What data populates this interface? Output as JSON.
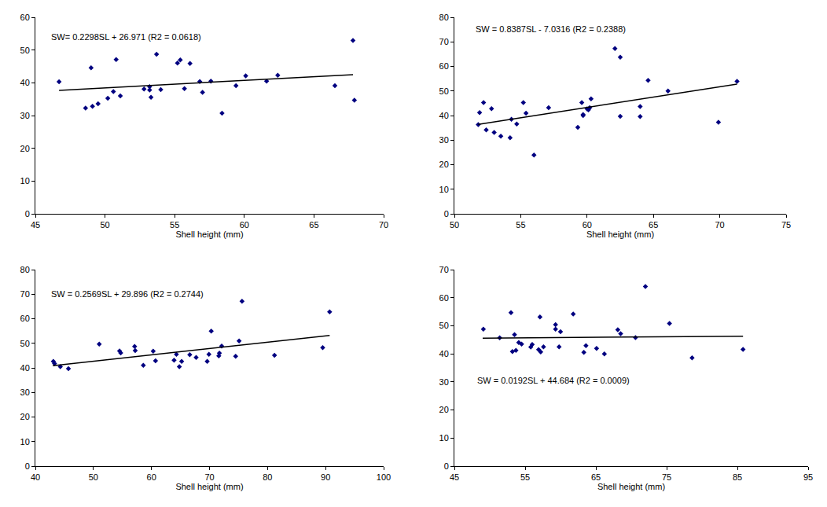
{
  "chart_data": [
    {
      "type": "scatter",
      "annotation": "SW= 0.2298SL + 26.971 (R2 = 0.0618)",
      "x_label": "Shell height (mm)",
      "xlim": [
        45,
        70
      ],
      "xticks": [
        45,
        50,
        55,
        60,
        65,
        70
      ],
      "ylim": [
        0,
        60
      ],
      "yticks": [
        0,
        10,
        20,
        30,
        40,
        50,
        60
      ],
      "grid": false,
      "series": [
        {
          "type": "scatter",
          "marker": "diamond",
          "color": "#000080",
          "x": [
            46.7,
            48.6,
            49.0,
            49.1,
            49.5,
            50.2,
            50.6,
            50.8,
            51.1,
            52.8,
            53.2,
            53.2,
            53.3,
            53.7,
            54.0,
            55.2,
            55.4,
            55.7,
            56.1,
            56.8,
            57.0,
            57.6,
            59.4,
            60.1,
            58.4,
            61.6,
            62.4,
            66.5,
            67.8,
            67.9
          ],
          "values": [
            40.3,
            32.3,
            44.6,
            32.8,
            33.6,
            35.3,
            37.3,
            47.1,
            36.0,
            38.1,
            38.8,
            37.8,
            35.6,
            48.7,
            37.9,
            46.0,
            47.0,
            38.2,
            45.9,
            40.4,
            37.1,
            40.5,
            39.1,
            42.1,
            30.7,
            40.5,
            42.3,
            39.1,
            52.9,
            34.7
          ]
        },
        {
          "type": "line",
          "line_style": "solid",
          "color": "#000000",
          "x": [
            46.7,
            67.8
          ],
          "values": [
            37.7,
            42.5
          ]
        }
      ]
    },
    {
      "type": "scatter",
      "annotation": "SW = 0.8387SL - 7.0316 (R2 = 0.2388)",
      "x_label": "Shell height (mm)",
      "xlim": [
        50,
        75
      ],
      "xticks": [
        50,
        55,
        60,
        65,
        70,
        75
      ],
      "ylim": [
        0,
        80
      ],
      "yticks": [
        0,
        10,
        20,
        30,
        40,
        50,
        60,
        70,
        80
      ],
      "grid": false,
      "series": [
        {
          "type": "scatter",
          "marker": "diamond",
          "color": "#000080",
          "x": [
            51.8,
            51.9,
            52.2,
            52.4,
            52.8,
            53.0,
            53.5,
            54.2,
            54.3,
            54.7,
            55.2,
            55.4,
            56.0,
            57.1,
            59.3,
            59.6,
            59.7,
            59.7,
            60.0,
            60.1,
            60.2,
            60.3,
            62.1,
            62.5,
            62.5,
            64.0,
            64.0,
            64.6,
            66.1,
            69.9,
            71.3
          ],
          "values": [
            36.3,
            41.2,
            45.3,
            34.2,
            42.8,
            33.1,
            31.6,
            31.0,
            38.5,
            36.6,
            45.3,
            41.0,
            23.9,
            43.2,
            35.2,
            45.3,
            40.0,
            40.4,
            42.7,
            42.3,
            43.2,
            46.8,
            67.3,
            63.8,
            39.7,
            39.6,
            43.7,
            54.3,
            50.0,
            37.3,
            53.9
          ]
        },
        {
          "type": "line",
          "line_style": "solid",
          "color": "#000000",
          "x": [
            51.8,
            71.3
          ],
          "values": [
            36.4,
            52.8
          ]
        }
      ]
    },
    {
      "type": "scatter",
      "annotation": "SW = 0.2569SL + 29.896 (R2 = 0.2744)",
      "x_label": "Shell height (mm)",
      "xlim": [
        40,
        100
      ],
      "xticks": [
        40,
        50,
        60,
        70,
        80,
        90,
        100
      ],
      "ylim": [
        0,
        80
      ],
      "yticks": [
        0,
        10,
        20,
        30,
        40,
        50,
        60,
        70,
        80
      ],
      "grid": false,
      "series": [
        {
          "type": "scatter",
          "marker": "diamond",
          "color": "#000080",
          "x": [
            43.1,
            43.3,
            44.3,
            45.7,
            51.0,
            54.5,
            54.7,
            57.1,
            57.2,
            58.6,
            60.3,
            60.7,
            63.9,
            64.3,
            64.8,
            65.2,
            66.6,
            67.7,
            69.6,
            69.9,
            70.3,
            71.6,
            71.7,
            72.1,
            74.5,
            75.1,
            75.6,
            81.2,
            89.5,
            90.7
          ],
          "values": [
            42.6,
            41.8,
            40.5,
            39.7,
            49.7,
            46.9,
            46.1,
            48.7,
            47.0,
            41.0,
            46.8,
            42.9,
            43.1,
            45.5,
            40.5,
            42.6,
            45.4,
            44.2,
            42.6,
            45.5,
            55.0,
            44.9,
            46.0,
            48.9,
            44.7,
            51.0,
            67.1,
            45.1,
            48.2,
            62.8
          ]
        },
        {
          "type": "line",
          "line_style": "solid",
          "color": "#000000",
          "x": [
            43.0,
            90.7
          ],
          "values": [
            40.9,
            53.2
          ]
        }
      ]
    },
    {
      "type": "scatter",
      "annotation": "SW = 0.0192SL + 44.684 (R2 = 0.0009)",
      "x_label": "Shell height (mm)",
      "xlim": [
        45,
        95
      ],
      "xticks": [
        45,
        55,
        65,
        75,
        85,
        95
      ],
      "ylim": [
        0,
        70
      ],
      "yticks": [
        0,
        10,
        20,
        30,
        40,
        50,
        60,
        70
      ],
      "grid": false,
      "series": [
        {
          "type": "scatter",
          "marker": "diamond",
          "color": "#000080",
          "x": [
            49.1,
            51.4,
            53.0,
            53.2,
            53.5,
            53.7,
            54.1,
            54.5,
            55.8,
            56.0,
            56.9,
            57.1,
            57.2,
            57.6,
            59.3,
            59.3,
            59.8,
            60.0,
            61.8,
            63.3,
            63.6,
            65.1,
            66.2,
            68.1,
            68.5,
            70.6,
            72.0,
            75.4,
            78.6,
            85.8
          ],
          "values": [
            48.8,
            45.7,
            54.7,
            40.8,
            46.8,
            41.2,
            44.0,
            43.5,
            42.4,
            43.3,
            41.5,
            53.1,
            40.7,
            42.5,
            50.4,
            48.8,
            42.5,
            47.9,
            54.2,
            40.5,
            42.9,
            41.9,
            40.0,
            48.6,
            47.2,
            45.8,
            64.0,
            50.8,
            38.6,
            41.6
          ]
        },
        {
          "type": "line",
          "line_style": "solid",
          "color": "#000000",
          "x": [
            49.0,
            85.8
          ],
          "values": [
            45.6,
            46.3
          ]
        }
      ]
    }
  ]
}
